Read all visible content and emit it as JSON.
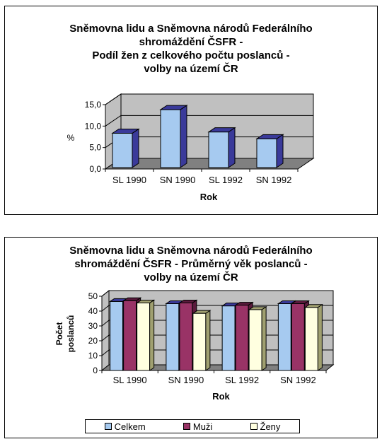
{
  "chart_data": [
    {
      "type": "bar",
      "title_lines": [
        "Sněmovna lidu a Sněmovna národů Federálního",
        "shromáždění ČSFR -",
        "Podíl žen z celkového počtu poslanců -",
        "volby na území ČR"
      ],
      "categories": [
        "SL 1990",
        "SN 1990",
        "SL 1992",
        "SN 1992"
      ],
      "values": [
        8.0,
        13.5,
        8.3,
        6.7
      ],
      "xlabel": "Rok",
      "ylabel": "%",
      "yticks": [
        "0,0",
        "5,0",
        "10,0",
        "15,0"
      ],
      "ylim": [
        0,
        15
      ],
      "grid": true,
      "colors": {
        "bar": "#a6caf0",
        "bar_side": "#3a3a9a",
        "wall": "#c0c0c0",
        "floor": "#808080"
      }
    },
    {
      "type": "bar",
      "title_lines": [
        "Sněmovna lidu a Sněmovna národů Federálního",
        "shromáždění ČSFR - Průměrný věk poslanců -",
        "volby na území ČR"
      ],
      "categories": [
        "SL 1990",
        "SN 1990",
        "SL 1992",
        "SN 1992"
      ],
      "series": [
        {
          "name": "Celkem",
          "values": [
            46.5,
            45.0,
            43.5,
            45.0
          ]
        },
        {
          "name": "Muži",
          "values": [
            47.0,
            45.5,
            44.0,
            45.0
          ]
        },
        {
          "name": "Ženy",
          "values": [
            45.5,
            38.5,
            41.0,
            42.5
          ]
        }
      ],
      "xlabel": "Rok",
      "ylabel_lines": [
        "Počet",
        "poslanců"
      ],
      "yticks": [
        "0",
        "10",
        "20",
        "30",
        "40",
        "50"
      ],
      "ylim": [
        0,
        50
      ],
      "grid": true,
      "legend_position": "bottom",
      "colors": {
        "series": [
          "#a6caf0",
          "#993366",
          "#ffffe0"
        ],
        "series_side": [
          "#3a3a9a",
          "#5a1a3c",
          "#a0a070"
        ],
        "wall": "#c0c0c0",
        "floor": "#808080"
      }
    }
  ]
}
